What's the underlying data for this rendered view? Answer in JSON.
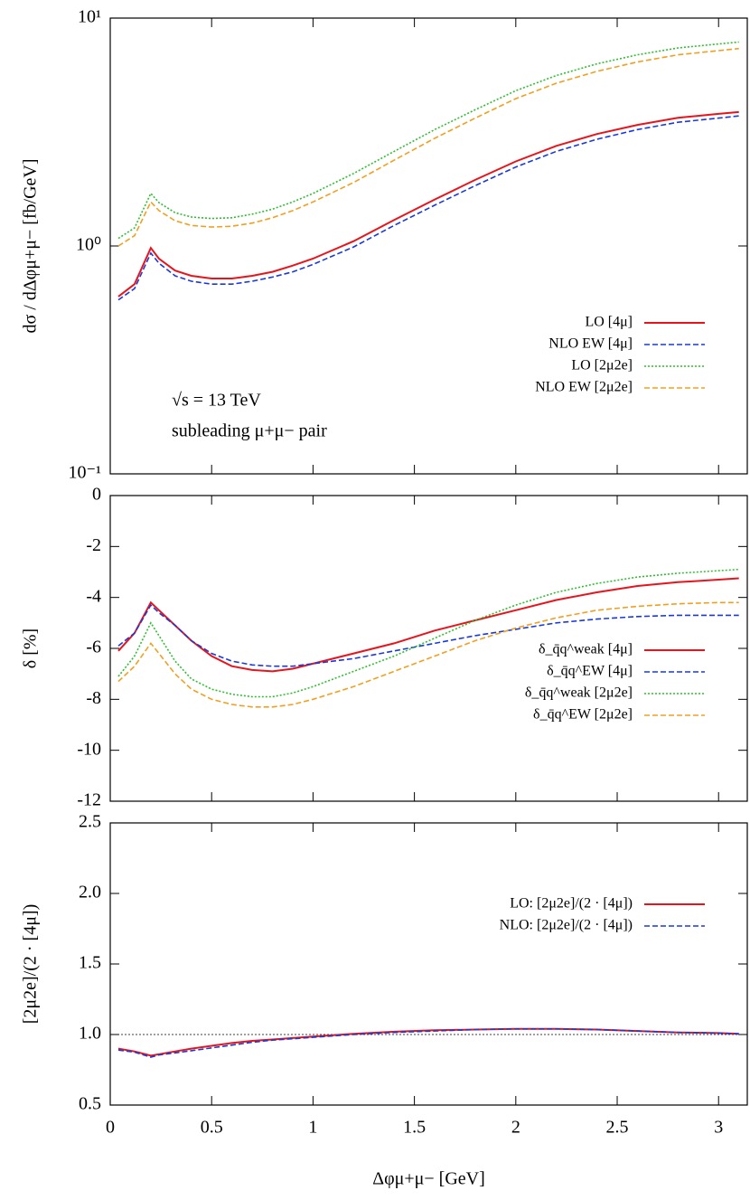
{
  "chart_data": [
    {
      "type": "line",
      "y_label": "dσ / dΔφμ+μ− [fb/GeV]",
      "log_y": true,
      "annotations": [
        "√s = 13 TeV",
        "subleading μ+μ− pair"
      ],
      "legend": "lower right",
      "xlim": [
        0,
        3.1416
      ],
      "xticks": [
        0,
        0.5,
        1,
        1.5,
        2,
        2.5,
        3
      ],
      "ylim": [
        0.1,
        10
      ],
      "yticks": [
        {
          "value": 0.1,
          "label": "10⁻¹"
        },
        {
          "value": 1,
          "label": "10⁰"
        },
        {
          "value": 10,
          "label": "10¹"
        }
      ],
      "x": [
        0.04,
        0.12,
        0.2,
        0.24,
        0.32,
        0.4,
        0.5,
        0.6,
        0.7,
        0.8,
        0.9,
        1.0,
        1.2,
        1.4,
        1.6,
        1.8,
        2.0,
        2.2,
        2.4,
        2.6,
        2.8,
        3.0,
        3.1
      ],
      "series": [
        {
          "name": "LO  [4μ]",
          "color": "#e8141c",
          "style": "solid",
          "values": [
            0.6,
            0.68,
            0.98,
            0.88,
            0.78,
            0.74,
            0.72,
            0.72,
            0.74,
            0.77,
            0.82,
            0.88,
            1.05,
            1.3,
            1.6,
            1.95,
            2.35,
            2.75,
            3.1,
            3.4,
            3.65,
            3.8,
            3.87
          ]
        },
        {
          "name": "NLO EW  [4μ]",
          "color": "#1a3ad8",
          "style": "dashed",
          "values": [
            0.58,
            0.65,
            0.93,
            0.84,
            0.74,
            0.7,
            0.68,
            0.68,
            0.7,
            0.73,
            0.77,
            0.83,
            0.99,
            1.23,
            1.51,
            1.84,
            2.22,
            2.6,
            2.94,
            3.24,
            3.49,
            3.64,
            3.72
          ]
        },
        {
          "name": "LO  [2μ2e]",
          "color": "#2fbe2f",
          "style": "dotted",
          "values": [
            1.08,
            1.2,
            1.7,
            1.55,
            1.4,
            1.34,
            1.32,
            1.33,
            1.38,
            1.45,
            1.56,
            1.7,
            2.08,
            2.6,
            3.24,
            3.96,
            4.8,
            5.6,
            6.3,
            6.9,
            7.4,
            7.7,
            7.85
          ]
        },
        {
          "name": "NLO EW  [2μ2e]",
          "color": "#f0a020",
          "style": "dashed",
          "values": [
            1.0,
            1.11,
            1.56,
            1.43,
            1.29,
            1.23,
            1.21,
            1.22,
            1.26,
            1.33,
            1.43,
            1.56,
            1.9,
            2.38,
            2.97,
            3.64,
            4.43,
            5.18,
            5.84,
            6.42,
            6.9,
            7.2,
            7.35
          ]
        }
      ]
    },
    {
      "type": "line",
      "y_label": "δ [%]",
      "legend": "lower right",
      "xlim": [
        0,
        3.1416
      ],
      "xticks": [
        0,
        0.5,
        1,
        1.5,
        2,
        2.5,
        3
      ],
      "ylim": [
        -12,
        0
      ],
      "yticks": [
        0,
        -2,
        -4,
        -6,
        -8,
        -10,
        -12
      ],
      "x": [
        0.04,
        0.12,
        0.2,
        0.24,
        0.32,
        0.4,
        0.5,
        0.6,
        0.7,
        0.8,
        0.9,
        1.0,
        1.2,
        1.4,
        1.6,
        1.8,
        2.0,
        2.2,
        2.4,
        2.6,
        2.8,
        3.0,
        3.1
      ],
      "series": [
        {
          "name": "δ_q̄q^weak [4μ]",
          "color": "#e8141c",
          "style": "solid",
          "values": [
            -6.1,
            -5.4,
            -4.2,
            -4.5,
            -5.1,
            -5.7,
            -6.3,
            -6.7,
            -6.85,
            -6.9,
            -6.8,
            -6.6,
            -6.2,
            -5.8,
            -5.3,
            -4.9,
            -4.5,
            -4.1,
            -3.8,
            -3.55,
            -3.4,
            -3.3,
            -3.25
          ]
        },
        {
          "name": "δ_q̄q^EW [4μ]",
          "color": "#1a3ad8",
          "style": "dashed",
          "values": [
            -5.9,
            -5.4,
            -4.3,
            -4.6,
            -5.1,
            -5.7,
            -6.2,
            -6.5,
            -6.65,
            -6.7,
            -6.7,
            -6.6,
            -6.4,
            -6.1,
            -5.8,
            -5.5,
            -5.25,
            -5.0,
            -4.85,
            -4.75,
            -4.7,
            -4.7,
            -4.7
          ]
        },
        {
          "name": "δ_q̄q^weak [2μ2e]",
          "color": "#2fbe2f",
          "style": "dotted",
          "values": [
            -7.1,
            -6.3,
            -5.0,
            -5.5,
            -6.5,
            -7.2,
            -7.6,
            -7.8,
            -7.9,
            -7.9,
            -7.75,
            -7.5,
            -6.9,
            -6.3,
            -5.6,
            -4.9,
            -4.3,
            -3.8,
            -3.45,
            -3.2,
            -3.05,
            -2.95,
            -2.9
          ]
        },
        {
          "name": "δ_q̄q^EW [2μ2e]",
          "color": "#f0a020",
          "style": "dashed",
          "values": [
            -7.3,
            -6.7,
            -5.8,
            -6.2,
            -7.0,
            -7.6,
            -8.0,
            -8.2,
            -8.3,
            -8.3,
            -8.2,
            -8.0,
            -7.5,
            -6.9,
            -6.3,
            -5.7,
            -5.2,
            -4.8,
            -4.5,
            -4.35,
            -4.25,
            -4.2,
            -4.2
          ]
        }
      ]
    },
    {
      "type": "line",
      "y_label": "[2μ2e]/(2 · [4μ])",
      "x_label": "Δφμ+μ− [GeV]",
      "legend": "upper right",
      "reference_line": 1,
      "xlim": [
        0,
        3.1416
      ],
      "xticks": [
        0,
        0.5,
        1,
        1.5,
        2,
        2.5,
        3
      ],
      "ylim": [
        0.5,
        2.5
      ],
      "yticks": [
        0.5,
        {
          "value": 1,
          "label": "1.0"
        },
        1.5,
        {
          "value": 2,
          "label": "2.0"
        },
        2.5
      ],
      "x": [
        0.04,
        0.12,
        0.2,
        0.24,
        0.32,
        0.4,
        0.5,
        0.6,
        0.7,
        0.8,
        0.9,
        1.0,
        1.2,
        1.4,
        1.6,
        1.8,
        2.0,
        2.2,
        2.4,
        2.6,
        2.8,
        3.0,
        3.1
      ],
      "series": [
        {
          "name": "LO: [2μ2e]/(2 · [4μ])",
          "color": "#e8141c",
          "style": "solid",
          "values": [
            0.9,
            0.88,
            0.85,
            0.86,
            0.88,
            0.9,
            0.92,
            0.94,
            0.955,
            0.965,
            0.975,
            0.985,
            1.005,
            1.02,
            1.03,
            1.035,
            1.04,
            1.04,
            1.035,
            1.025,
            1.015,
            1.01,
            1.005
          ]
        },
        {
          "name": "NLO: [2μ2e]/(2 · [4μ])",
          "color": "#1a3ad8",
          "style": "dashed",
          "values": [
            0.89,
            0.875,
            0.84,
            0.855,
            0.87,
            0.885,
            0.905,
            0.925,
            0.945,
            0.96,
            0.97,
            0.98,
            1.0,
            1.015,
            1.025,
            1.035,
            1.04,
            1.04,
            1.035,
            1.025,
            1.015,
            1.01,
            1.005
          ]
        }
      ]
    }
  ]
}
